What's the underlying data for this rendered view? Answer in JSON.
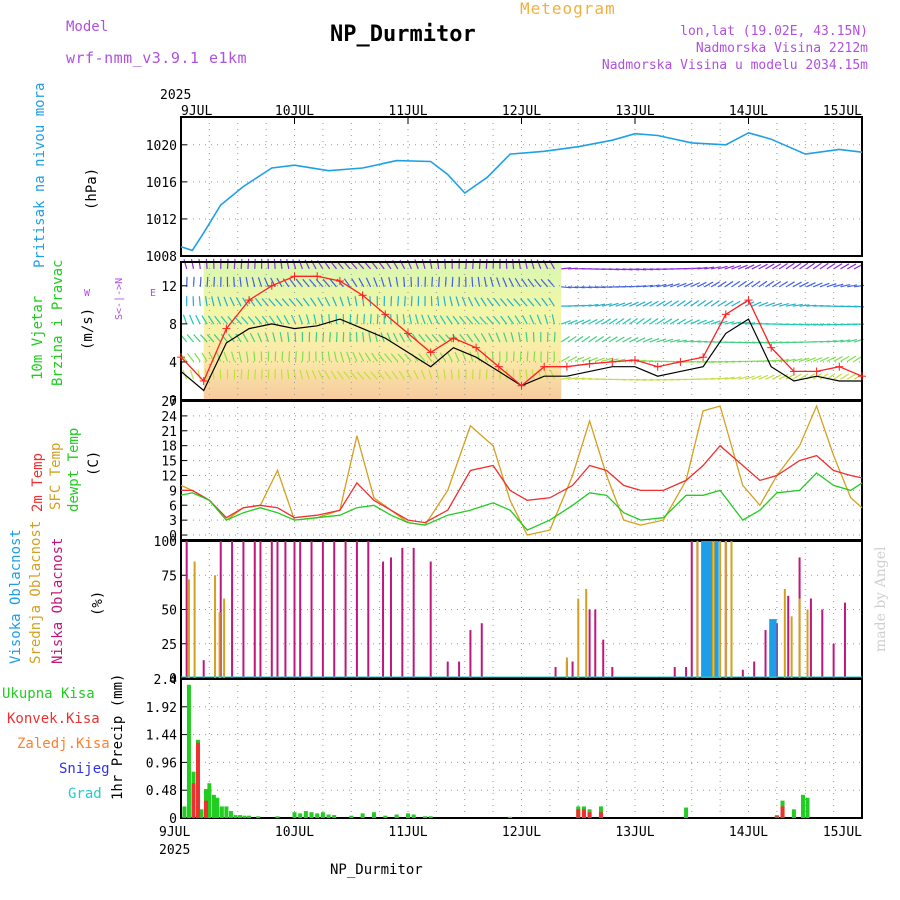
{
  "header": {
    "model_label": "Model",
    "model_name": "wrf-nmm_v3.9.1 e1km",
    "station": "NP_Durmitor",
    "product": "Meteogram",
    "lonlat": "lon,lat (19.02E, 43.15N)",
    "altitude": "Nadmorska Visina 2212m",
    "model_altitude": "Nadmorska Visina u modelu 2034.15m",
    "footer_station": "NP_Durmitor",
    "credit": "made by Angel"
  },
  "colors": {
    "pressure": "#1ea0e6",
    "wind_speed": "#000000",
    "wind_max": "#ff2020",
    "temp_2m": "#ee3030",
    "temp_sfc": "#d4a020",
    "temp_dew": "#22cc22",
    "cloud_high": "#1e9ee6",
    "cloud_mid": "#d4a020",
    "cloud_low": "#c0187a",
    "precip_total": "#22cc22",
    "precip_conv": "#ee3030",
    "precip_frozen": "#ff8030",
    "precip_snow": "#3030ee",
    "precip_graupel": "#22cccc",
    "titles_purple": "#b050e0",
    "meteogram_orange": "#f0b040"
  },
  "chart_data": [
    {
      "type": "line",
      "title": "Pritisak na nivou mora",
      "ylabel": "(hPa)",
      "ylim": [
        1008,
        1023
      ],
      "yticks": [
        "1008",
        "1012",
        "1016",
        "1020"
      ],
      "xlabels_top": [
        "9JUL",
        "10JUL",
        "11JUL",
        "12JUL",
        "13JUL",
        "14JUL",
        "15JUL"
      ],
      "xyear_top": "2025",
      "x_days": [
        0,
        0.1,
        0.2,
        0.35,
        0.55,
        0.8,
        1.0,
        1.3,
        1.6,
        1.9,
        2.2,
        2.35,
        2.5,
        2.7,
        2.9,
        3.2,
        3.5,
        3.8,
        4.0,
        4.2,
        4.5,
        4.8,
        5.0,
        5.2,
        5.5,
        5.8,
        6.0
      ],
      "series": [
        {
          "values": [
            1009,
            1008.6,
            1010.5,
            1013.5,
            1015.5,
            1017.5,
            1017.8,
            1017.2,
            1017.5,
            1018.3,
            1018.2,
            1016.8,
            1014.8,
            1016.5,
            1019.0,
            1019.3,
            1019.8,
            1020.5,
            1021.2,
            1021.0,
            1020.2,
            1020.0,
            1021.3,
            1020.6,
            1019.0,
            1019.5,
            1019.2
          ]
        }
      ]
    },
    {
      "type": "line",
      "title": "10m Vjetar Brzina i Pravac",
      "ylabel": "(m/s)",
      "ylim": [
        0,
        14.5
      ],
      "yticks": [
        "0",
        "4",
        "8",
        "12"
      ],
      "direction_legend": [
        "W",
        "<-",
        "|",
        "->",
        "E",
        "S",
        "N"
      ],
      "x_days": [
        0,
        0.2,
        0.4,
        0.6,
        0.8,
        1.0,
        1.2,
        1.4,
        1.6,
        1.8,
        2.0,
        2.2,
        2.4,
        2.6,
        2.8,
        3.0,
        3.2,
        3.4,
        3.6,
        3.8,
        4.0,
        4.2,
        4.4,
        4.6,
        4.8,
        5.0,
        5.2,
        5.4,
        5.6,
        5.8,
        6.0
      ],
      "series": [
        {
          "name": "speed",
          "values": [
            3.0,
            1.0,
            6.0,
            7.5,
            8.0,
            7.5,
            7.8,
            8.5,
            7.5,
            6.5,
            5.0,
            3.5,
            5.5,
            4.5,
            3.0,
            1.5,
            2.5,
            2.5,
            3.0,
            3.5,
            3.5,
            2.5,
            3.0,
            3.5,
            7.0,
            8.5,
            3.5,
            2.0,
            2.5,
            2.0,
            2.0
          ]
        },
        {
          "name": "max",
          "values": [
            4.5,
            2.0,
            7.5,
            10.5,
            12.0,
            13.0,
            13.0,
            12.5,
            11.0,
            9.0,
            7.0,
            5.0,
            6.5,
            5.5,
            3.5,
            1.5,
            3.5,
            3.5,
            3.8,
            4.0,
            4.2,
            3.5,
            4.0,
            4.5,
            9.0,
            10.5,
            5.5,
            3.0,
            3.0,
            3.5,
            2.5
          ]
        }
      ]
    },
    {
      "type": "line",
      "title": "2m Temp / SFC Temp / dewpt Temp",
      "ylabel": "(C)",
      "ylim": [
        -1,
        27
      ],
      "yticks": [
        "0",
        "3",
        "6",
        "9",
        "12",
        "15",
        "18",
        "21",
        "24",
        "27"
      ],
      "x_days": [
        0,
        0.1,
        0.25,
        0.4,
        0.55,
        0.7,
        0.85,
        1.0,
        1.2,
        1.4,
        1.55,
        1.7,
        1.85,
        2.0,
        2.15,
        2.35,
        2.55,
        2.75,
        2.9,
        3.05,
        3.25,
        3.45,
        3.6,
        3.75,
        3.9,
        4.05,
        4.25,
        4.45,
        4.6,
        4.75,
        4.95,
        5.1,
        5.25,
        5.45,
        5.6,
        5.75,
        5.9,
        6.0
      ],
      "series": [
        {
          "name": "2m Temp",
          "values": [
            9,
            9,
            7,
            3.5,
            5.5,
            6,
            5.5,
            3.5,
            4,
            5,
            10.5,
            7,
            5,
            3,
            2.5,
            5,
            13,
            14,
            9,
            7,
            7.5,
            10,
            14,
            13,
            10,
            9,
            9,
            11,
            14,
            18,
            14,
            11,
            12,
            15,
            16,
            13,
            12,
            11.5
          ]
        },
        {
          "name": "SFC Temp",
          "values": [
            10,
            9,
            7,
            3,
            5.5,
            6,
            13,
            3,
            3.5,
            5,
            20,
            7.5,
            5,
            2.5,
            2,
            9,
            22,
            18,
            7,
            0,
            1,
            12,
            23,
            12,
            3,
            2,
            3,
            11,
            25,
            26,
            10,
            6,
            12,
            18,
            26,
            16,
            7.5,
            5.5
          ]
        },
        {
          "name": "dewpt Temp",
          "values": [
            8,
            8.5,
            7,
            3,
            4.5,
            5.5,
            4.5,
            3,
            3.5,
            4,
            5.5,
            6,
            4,
            2.5,
            2,
            4,
            5,
            6.5,
            5,
            1,
            3,
            6,
            8.5,
            8,
            4.5,
            3,
            3.5,
            8,
            8,
            9,
            3,
            5,
            8.5,
            9,
            12.5,
            10,
            9,
            10.5
          ]
        }
      ]
    },
    {
      "type": "bar",
      "title": "Visoka / Srednja / Niska Oblacnost",
      "ylabel": "(%)",
      "ylim": [
        0,
        100
      ],
      "yticks": [
        "0",
        "25",
        "50",
        "75",
        "100"
      ],
      "series": [
        {
          "name": "Niska Oblacnost",
          "x_days": [
            0.05,
            0.2,
            0.35,
            0.45,
            0.55,
            0.65,
            0.7,
            0.8,
            0.85,
            0.92,
            1.0,
            1.05,
            1.15,
            1.25,
            1.35,
            1.45,
            1.55,
            1.65,
            1.78,
            1.85,
            1.95,
            2.05,
            2.2,
            2.35,
            2.45,
            2.55,
            2.65,
            3.3,
            3.4,
            3.45,
            3.6,
            3.65,
            3.72,
            3.8,
            4.35,
            4.45,
            4.5,
            4.55,
            4.6,
            4.65,
            4.72,
            4.8,
            4.95,
            5.05,
            5.15,
            5.25,
            5.35,
            5.45,
            5.55,
            5.65,
            5.75,
            5.85
          ],
          "values": [
            100,
            13,
            100,
            100,
            100,
            100,
            100,
            100,
            100,
            100,
            100,
            100,
            100,
            100,
            100,
            100,
            100,
            100,
            85,
            88,
            95,
            95,
            85,
            12,
            12,
            35,
            40,
            8,
            12,
            12,
            50,
            50,
            28,
            8,
            8,
            8,
            100,
            100,
            100,
            100,
            100,
            100,
            6,
            12,
            35,
            40,
            60,
            88,
            58,
            50,
            25,
            55
          ]
        },
        {
          "name": "Srednja Oblacnost",
          "x_days": [
            0.07,
            0.12,
            0.3,
            0.34,
            0.38,
            3.4,
            3.5,
            3.57,
            4.55,
            4.6,
            4.65,
            4.68,
            4.7,
            4.75,
            4.8,
            4.85,
            5.32,
            5.38,
            5.45,
            5.52
          ],
          "values": [
            72,
            85,
            75,
            48,
            58,
            15,
            58,
            65,
            100,
            100,
            100,
            100,
            100,
            100,
            100,
            100,
            65,
            45,
            58,
            50
          ]
        },
        {
          "name": "Visoka Oblacnost",
          "x_days": [
            4.6,
            4.63,
            4.66,
            4.72,
            5.2,
            5.23
          ],
          "values": [
            100,
            100,
            100,
            100,
            43,
            43
          ]
        }
      ]
    },
    {
      "type": "bar",
      "title": "1hr Precip",
      "ylabel": "1hr Precip (mm)",
      "ylim": [
        0,
        2.4
      ],
      "yticks": [
        "0",
        "0.48",
        "0.96",
        "1.44",
        "1.92",
        "2.4"
      ],
      "legend": [
        "Ukupna Kisa",
        "Konvek.Kisa",
        "Zaledj.Kisa",
        "Snijeg",
        "Grad"
      ],
      "xlabels_bottom": [
        "9JUL",
        "10JUL",
        "11JUL",
        "12JUL",
        "13JUL",
        "14JUL",
        "15JUL"
      ],
      "xyear_bottom": "2025",
      "series": [
        {
          "name": "Ukupna Kisa",
          "x_days": [
            0.03,
            0.07,
            0.11,
            0.15,
            0.18,
            0.22,
            0.25,
            0.29,
            0.32,
            0.36,
            0.4,
            0.44,
            0.48,
            0.52,
            0.56,
            0.6,
            0.68,
            0.85,
            1.0,
            1.05,
            1.1,
            1.15,
            1.2,
            1.25,
            1.3,
            1.35,
            1.5,
            1.6,
            1.7,
            1.8,
            1.9,
            2.0,
            2.05,
            2.15,
            2.2,
            2.9,
            3.5,
            3.55,
            3.6,
            3.7,
            4.45,
            5.25,
            5.3,
            5.4,
            5.48,
            5.52
          ],
          "values": [
            0.2,
            2.3,
            0.8,
            1.35,
            0.15,
            0.5,
            0.6,
            0.4,
            0.35,
            0.2,
            0.2,
            0.12,
            0.05,
            0.05,
            0.04,
            0.04,
            0.03,
            0.03,
            0.1,
            0.08,
            0.12,
            0.1,
            0.08,
            0.1,
            0.06,
            0.05,
            0.04,
            0.08,
            0.1,
            0.04,
            0.06,
            0.08,
            0.06,
            0.03,
            0.03,
            0.02,
            0.2,
            0.2,
            0.15,
            0.2,
            0.18,
            0.05,
            0.3,
            0.15,
            0.4,
            0.35
          ]
        },
        {
          "name": "Konvek.Kisa",
          "x_days": [
            0.11,
            0.15,
            0.22,
            3.5,
            3.55,
            3.6,
            3.7,
            5.25,
            5.3
          ],
          "values": [
            0.6,
            1.3,
            0.3,
            0.15,
            0.15,
            0.1,
            0.1,
            0.03,
            0.2
          ]
        }
      ]
    }
  ]
}
